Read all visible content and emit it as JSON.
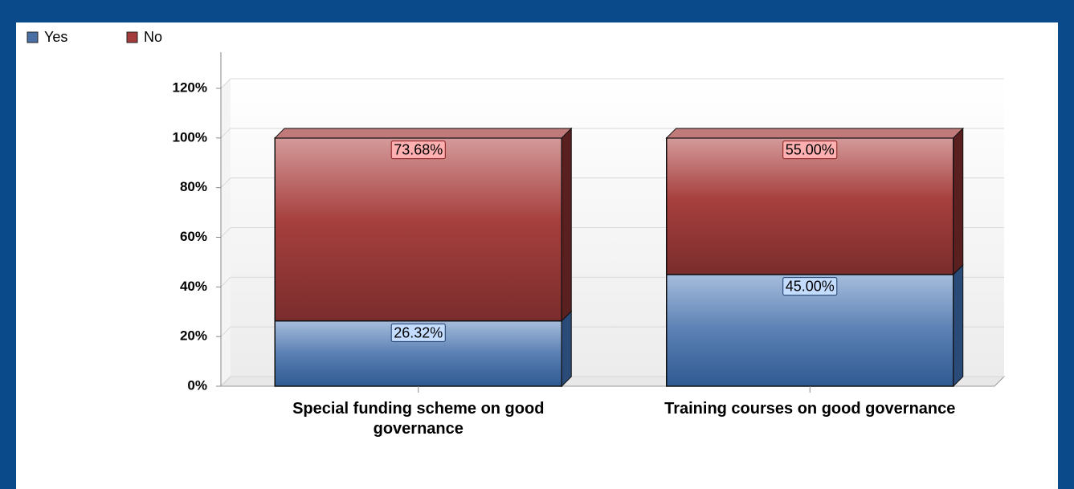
{
  "chart_data": {
    "type": "stacked_bar_3d",
    "categories": [
      "Special funding scheme on good governance",
      "Training courses on good governance"
    ],
    "series": [
      {
        "name": "Yes",
        "color": "#4a6fa5",
        "values": [
          26.32,
          45.0
        ],
        "value_labels": [
          "26.32%",
          "45.00%"
        ]
      },
      {
        "name": "No",
        "color": "#a33c3c",
        "values": [
          73.68,
          55.0
        ],
        "value_labels": [
          "73.68%",
          "55.00%"
        ]
      }
    ],
    "ylim": [
      0,
      120
    ],
    "yticks": [
      {
        "value": 0,
        "label": "0%"
      },
      {
        "value": 20,
        "label": "20%"
      },
      {
        "value": 40,
        "label": "40%"
      },
      {
        "value": 60,
        "label": "60%"
      },
      {
        "value": 80,
        "label": "80%"
      },
      {
        "value": 100,
        "label": "100%"
      },
      {
        "value": 120,
        "label": "120%"
      }
    ],
    "grid": true,
    "legend": "top-left"
  }
}
